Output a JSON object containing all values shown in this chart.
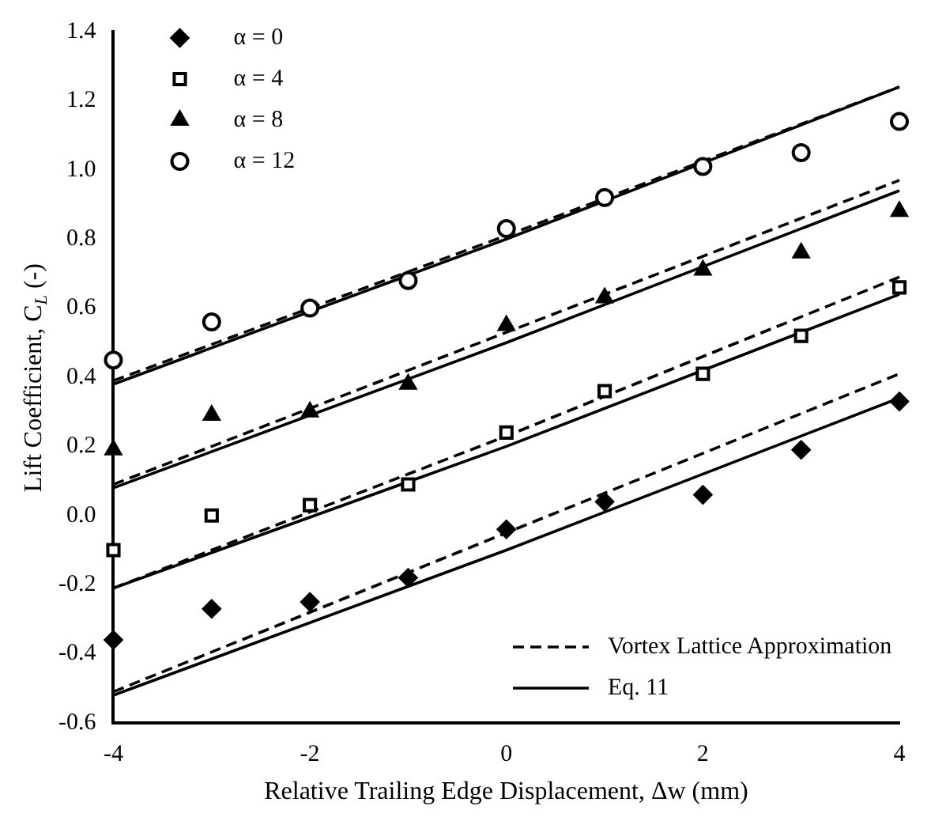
{
  "chart_data": {
    "type": "scatter",
    "xlabel": "Relative Trailing Edge Displacement, Δw (mm)",
    "ylabel": "Lift Coefficient, C$_{L}$ (-)",
    "x": [
      -4,
      -3,
      -2,
      -1,
      0,
      1,
      2,
      3,
      4
    ],
    "xlim": [
      -4,
      4
    ],
    "xticks": [
      -4,
      -2,
      0,
      2,
      4
    ],
    "ylim": [
      -0.6,
      1.4
    ],
    "yticks": [
      {
        "value": -0.6,
        "label": "-0.6"
      },
      {
        "value": -0.4,
        "label": "-0.4"
      },
      {
        "value": -0.2,
        "label": "-0.2"
      },
      {
        "value": 0,
        "label": "0.0"
      },
      {
        "value": 0.2,
        "label": "0.2"
      },
      {
        "value": 0.4,
        "label": "0.4"
      },
      {
        "value": 0.6,
        "label": "0.6"
      },
      {
        "value": 0.8,
        "label": "0.8"
      },
      {
        "value": 1,
        "label": "1.0"
      },
      {
        "value": 1.2,
        "label": "1.2"
      },
      {
        "value": 1.4,
        "label": "1.4"
      }
    ],
    "grid": false,
    "legend": "top left",
    "series": [
      {
        "name": "α = 0",
        "marker": "diamond",
        "color": "#000000",
        "values": [
          -0.36,
          -0.27,
          -0.25,
          -0.18,
          -0.04,
          0.04,
          0.06,
          0.19,
          0.33
        ]
      },
      {
        "name": "α = 4",
        "marker": "square",
        "color": "#000000",
        "values": [
          -0.1,
          0.0,
          0.03,
          0.09,
          0.24,
          0.36,
          0.41,
          0.52,
          0.66
        ]
      },
      {
        "name": "α = 8",
        "marker": "triangle",
        "color": "#000000",
        "values": [
          0.19,
          0.29,
          0.3,
          0.38,
          0.55,
          0.63,
          0.71,
          0.76,
          0.88
        ]
      },
      {
        "name": "α = 12",
        "marker": "circle",
        "color": "#000000",
        "values": [
          0.45,
          0.56,
          0.6,
          0.68,
          0.83,
          0.92,
          1.01,
          1.05,
          1.14
        ]
      },
      {
        "name": "Vortex Lattice Approximation",
        "type": "line",
        "line_style": "dashed",
        "marker": "none",
        "color": "#000000",
        "x": [
          -4,
          0,
          4
        ],
        "values": [
          -0.51,
          -0.05,
          0.41
        ]
      },
      {
        "type": "line",
        "line_style": "dashed",
        "marker": "none",
        "color": "#000000",
        "x": [
          -4,
          0,
          4
        ],
        "values": [
          -0.21,
          0.23,
          0.69
        ]
      },
      {
        "type": "line",
        "line_style": "dashed",
        "marker": "none",
        "color": "#000000",
        "x": [
          -4,
          0,
          4
        ],
        "values": [
          0.09,
          0.53,
          0.97
        ]
      },
      {
        "type": "line",
        "line_style": "dashed",
        "marker": "none",
        "color": "#000000",
        "x": [
          -4,
          0,
          4
        ],
        "values": [
          0.39,
          0.81,
          1.24
        ]
      },
      {
        "name": "Eq. 11",
        "type": "line",
        "line_style": "solid",
        "marker": "none",
        "color": "#000000",
        "x": [
          -4,
          0,
          4
        ],
        "values": [
          -0.52,
          -0.1,
          0.34
        ]
      },
      {
        "type": "line",
        "line_style": "solid",
        "marker": "none",
        "color": "#000000",
        "x": [
          -4,
          0,
          4
        ],
        "values": [
          -0.21,
          0.2,
          0.64
        ]
      },
      {
        "type": "line",
        "line_style": "solid",
        "marker": "none",
        "color": "#000000",
        "x": [
          -4,
          0,
          4
        ],
        "values": [
          0.08,
          0.5,
          0.94
        ]
      },
      {
        "type": "line",
        "line_style": "solid",
        "marker": "none",
        "color": "#000000",
        "x": [
          -4,
          0,
          4
        ],
        "values": [
          0.38,
          0.8,
          1.24
        ]
      }
    ]
  }
}
